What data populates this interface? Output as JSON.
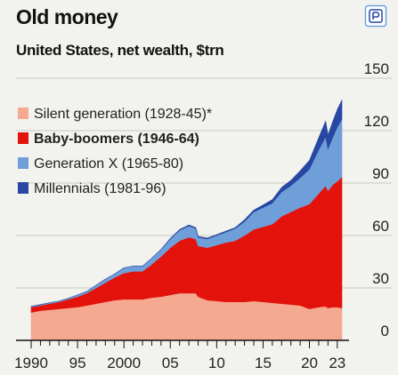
{
  "header": {
    "title": "Old money",
    "subtitle": "United States, net wealth, $trn",
    "icon": "interactive-widget-icon"
  },
  "colors": {
    "silent": "#f4a990",
    "boomers": "#e3120b",
    "genx": "#6f9fd8",
    "millennials": "#2747a3",
    "grid": "#c9c9c4",
    "axis": "#121212",
    "background": "#f2f2ee"
  },
  "chart_data": {
    "type": "area",
    "stacked": true,
    "title": "Old money",
    "subtitle": "United States, net wealth, $trn",
    "y_axis_side": "right",
    "ylim": [
      0,
      150
    ],
    "yticks": [
      0,
      30,
      60,
      90,
      120,
      150
    ],
    "xlim": [
      1989.75,
      2023.5
    ],
    "xticks": [
      {
        "value": 1990,
        "label": "1990"
      },
      {
        "value": 1995,
        "label": "95"
      },
      {
        "value": 2000,
        "label": "2000"
      },
      {
        "value": 2005,
        "label": "05"
      },
      {
        "value": 2010,
        "label": "10"
      },
      {
        "value": 2015,
        "label": "15"
      },
      {
        "value": 2020,
        "label": "20"
      },
      {
        "value": 2023,
        "label": "23"
      }
    ],
    "grid": true,
    "legend_position": "top-left",
    "x": [
      1990,
      1991,
      1992,
      1993,
      1994,
      1995,
      1996,
      1997,
      1998,
      1999,
      2000,
      2001,
      2002,
      2003,
      2004,
      2005,
      2006,
      2007,
      2007.75,
      2008,
      2009,
      2010,
      2011,
      2012,
      2013,
      2014,
      2015,
      2016,
      2017,
      2018,
      2019,
      2020,
      2021,
      2021.75,
      2022,
      2022.5,
      2023,
      2023.5
    ],
    "series": [
      {
        "name": "Silent generation (1928-45)*",
        "key": "silent",
        "legend_bold": false,
        "values": [
          16,
          17,
          17.5,
          18,
          18.5,
          19,
          20,
          21,
          22,
          23,
          23.5,
          23.5,
          23.5,
          24.5,
          25,
          26,
          27,
          27,
          27,
          25,
          23,
          22.5,
          22,
          22,
          22,
          22.5,
          22,
          21.5,
          21,
          20.5,
          20,
          18,
          19,
          19.5,
          18.5,
          19,
          19,
          18.5
        ]
      },
      {
        "name": "Baby-boomers (1946-64)",
        "key": "boomers",
        "legend_bold": true,
        "values": [
          3,
          3,
          3.5,
          4,
          5,
          6,
          7,
          9,
          11,
          13,
          15,
          16,
          16,
          19,
          23,
          27,
          30,
          32,
          31,
          29,
          30,
          32,
          34,
          35,
          38,
          41,
          43,
          45,
          50,
          53,
          56,
          60,
          65,
          69,
          67,
          70,
          72,
          75
        ]
      },
      {
        "name": "Generation X (1965-80)",
        "key": "genx",
        "legend_bold": false,
        "values": [
          0.5,
          0.5,
          0.5,
          0.5,
          0.5,
          1,
          1,
          1.5,
          2,
          2,
          3,
          3,
          3,
          3.5,
          4,
          5,
          6,
          6.5,
          6,
          5,
          5,
          5.5,
          6,
          7,
          8,
          10,
          11,
          12,
          14,
          15,
          17,
          20,
          25,
          28,
          24,
          27,
          31,
          33
        ]
      },
      {
        "name": "Millennials (1981-96)",
        "key": "millennials",
        "legend_bold": false,
        "values": [
          0,
          0,
          0,
          0,
          0,
          0,
          0,
          0,
          0,
          0,
          0,
          0,
          0,
          0,
          0,
          0.3,
          0.4,
          0.5,
          0.5,
          0.5,
          0.5,
          0.5,
          0.5,
          0.5,
          1,
          1,
          1.5,
          2,
          2.5,
          3,
          4,
          5,
          7,
          9,
          8,
          9,
          10,
          11
        ]
      }
    ]
  }
}
